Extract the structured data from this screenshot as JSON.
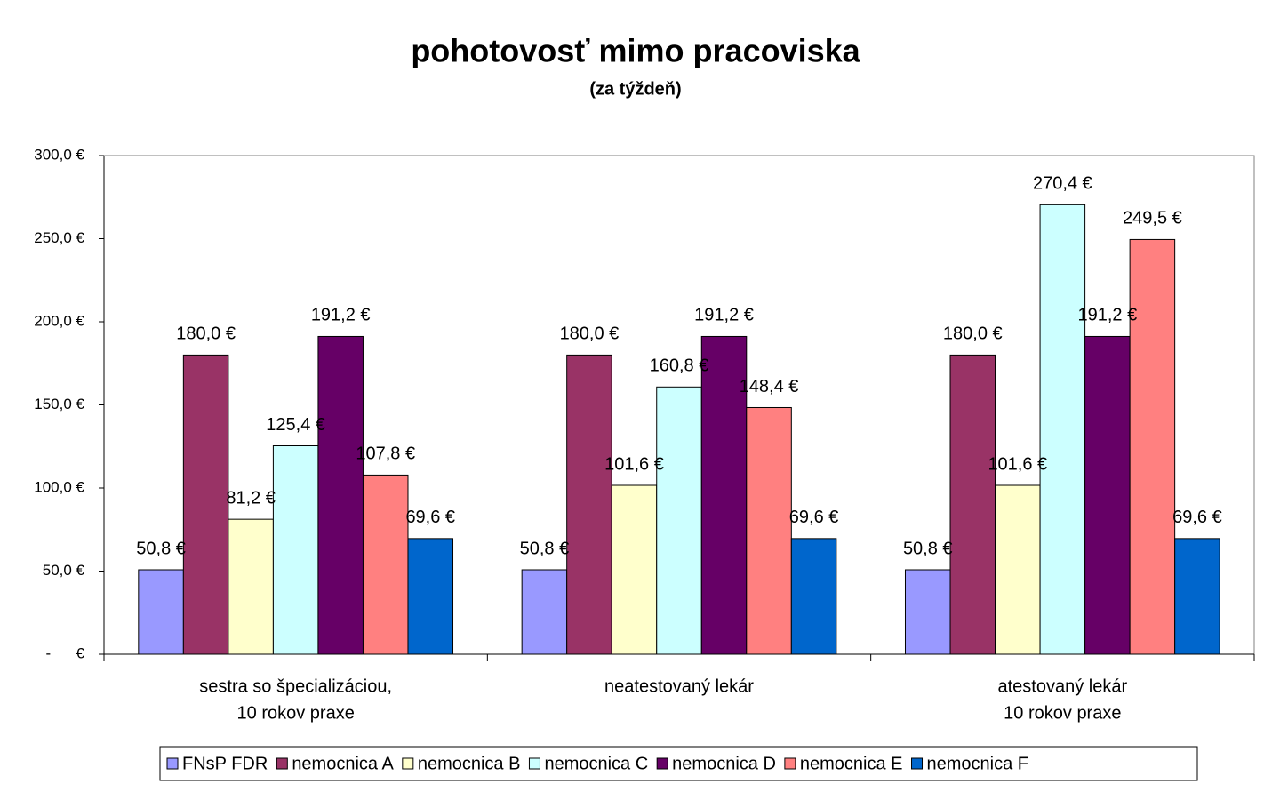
{
  "chart_data": {
    "type": "bar",
    "title": "pohotovosť mimo pracoviska",
    "subtitle": "(za týždeň)",
    "categories": [
      [
        "sestra so špecializáciou,",
        "10 rokov praxe"
      ],
      [
        "neatestovaný lekár"
      ],
      [
        "atestovaný lekár",
        "10 rokov praxe"
      ]
    ],
    "ylim": [
      0,
      300
    ],
    "yticks": [
      {
        "value": 0,
        "label": "-      €"
      },
      {
        "value": 50,
        "label": "50,0 €"
      },
      {
        "value": 100,
        "label": "100,0 €"
      },
      {
        "value": 150,
        "label": "150,0 €"
      },
      {
        "value": 200,
        "label": "200,0 €"
      },
      {
        "value": 250,
        "label": "250,0 €"
      },
      {
        "value": 300,
        "label": "300,0 €"
      }
    ],
    "grid": false,
    "legend": "bottom",
    "series": [
      {
        "name": "FNsP FDR",
        "color": "#9999ff",
        "values": [
          50.8,
          50.8,
          50.8
        ],
        "value_labels": [
          "50,8 €",
          "50,8 €",
          "50,8 €"
        ]
      },
      {
        "name": "nemocnica A",
        "color": "#993366",
        "values": [
          180.0,
          180.0,
          180.0
        ],
        "value_labels": [
          "180,0 €",
          "180,0 €",
          "180,0 €"
        ]
      },
      {
        "name": "nemocnica B",
        "color": "#ffffcc",
        "values": [
          81.2,
          101.6,
          101.6
        ],
        "value_labels": [
          "81,2 €",
          "101,6 €",
          "101,6 €"
        ]
      },
      {
        "name": "nemocnica C",
        "color": "#ccffff",
        "values": [
          125.4,
          160.8,
          270.4
        ],
        "value_labels": [
          "125,4 €",
          "160,8 €",
          "270,4 €"
        ]
      },
      {
        "name": "nemocnica D",
        "color": "#660066",
        "values": [
          191.2,
          191.2,
          191.2
        ],
        "value_labels": [
          "191,2 €",
          "191,2 €",
          "191,2 €"
        ]
      },
      {
        "name": "nemocnica E",
        "color": "#ff8080",
        "values": [
          107.8,
          148.4,
          249.5
        ],
        "value_labels": [
          "107,8 €",
          "148,4 €",
          "249,5 €"
        ]
      },
      {
        "name": "nemocnica F",
        "color": "#0066cc",
        "values": [
          69.6,
          69.6,
          69.6
        ],
        "value_labels": [
          "69,6 €",
          "69,6 €",
          "69,6 €"
        ]
      }
    ]
  }
}
